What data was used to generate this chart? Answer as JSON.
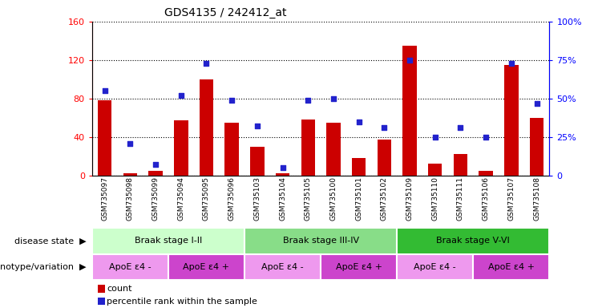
{
  "title": "GDS4135 / 242412_at",
  "samples": [
    "GSM735097",
    "GSM735098",
    "GSM735099",
    "GSM735094",
    "GSM735095",
    "GSM735096",
    "GSM735103",
    "GSM735104",
    "GSM735105",
    "GSM735100",
    "GSM735101",
    "GSM735102",
    "GSM735109",
    "GSM735110",
    "GSM735111",
    "GSM735106",
    "GSM735107",
    "GSM735108"
  ],
  "counts": [
    78,
    2,
    5,
    57,
    100,
    55,
    30,
    2,
    58,
    55,
    18,
    37,
    135,
    12,
    22,
    5,
    115,
    60
  ],
  "percentiles": [
    55,
    21,
    7,
    52,
    73,
    49,
    32,
    5,
    49,
    50,
    35,
    31,
    75,
    25,
    31,
    25,
    73,
    47
  ],
  "ylim_left": [
    0,
    160
  ],
  "ylim_right": [
    0,
    100
  ],
  "yticks_left": [
    0,
    40,
    80,
    120,
    160
  ],
  "yticks_right": [
    0,
    25,
    50,
    75,
    100
  ],
  "ytick_labels_right": [
    "0",
    "25%",
    "50%",
    "75%",
    "100%"
  ],
  "bar_color": "#cc0000",
  "dot_color": "#2222cc",
  "disease_state_groups": [
    {
      "label": "Braak stage I-II",
      "start": 0,
      "end": 6,
      "color": "#ccffcc"
    },
    {
      "label": "Braak stage III-IV",
      "start": 6,
      "end": 12,
      "color": "#88dd88"
    },
    {
      "label": "Braak stage V-VI",
      "start": 12,
      "end": 18,
      "color": "#33bb33"
    }
  ],
  "genotype_groups": [
    {
      "label": "ApoE ε4 -",
      "start": 0,
      "end": 3,
      "color": "#ee99ee"
    },
    {
      "label": "ApoE ε4 +",
      "start": 3,
      "end": 6,
      "color": "#cc44cc"
    },
    {
      "label": "ApoE ε4 -",
      "start": 6,
      "end": 9,
      "color": "#ee99ee"
    },
    {
      "label": "ApoE ε4 +",
      "start": 9,
      "end": 12,
      "color": "#cc44cc"
    },
    {
      "label": "ApoE ε4 -",
      "start": 12,
      "end": 15,
      "color": "#ee99ee"
    },
    {
      "label": "ApoE ε4 +",
      "start": 15,
      "end": 18,
      "color": "#cc44cc"
    }
  ],
  "disease_state_label": "disease state",
  "genotype_label": "genotype/variation",
  "legend_count_label": "count",
  "legend_pct_label": "percentile rank within the sample",
  "fig_width": 7.41,
  "fig_height": 3.84,
  "dpi": 100
}
